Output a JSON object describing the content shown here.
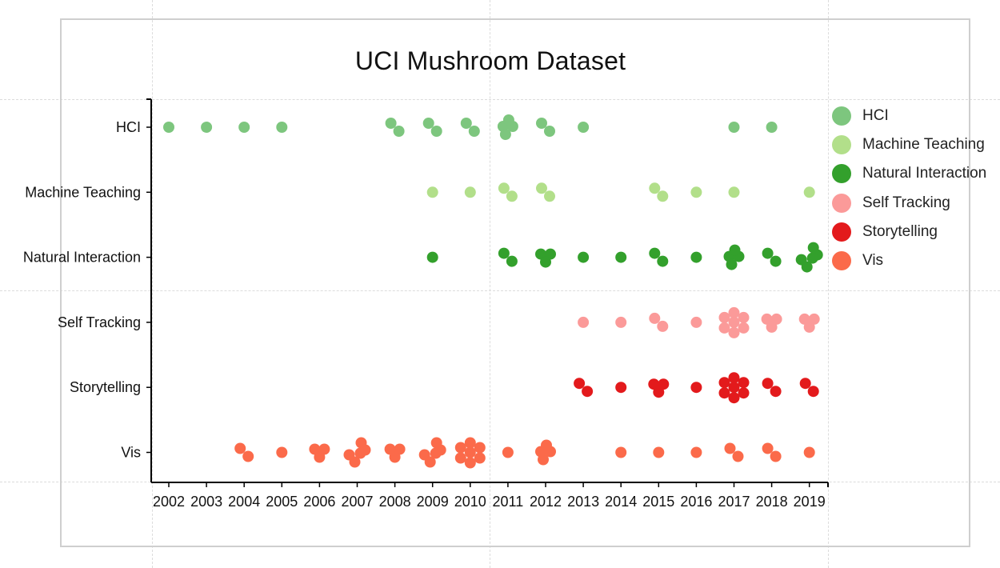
{
  "chart_data": {
    "type": "scatter",
    "title": "UCI Mushroom Dataset",
    "xlabel": "",
    "ylabel": "",
    "x_ticks": [
      "2002",
      "2003",
      "2004",
      "2005",
      "2006",
      "2007",
      "2008",
      "2009",
      "2010",
      "2011",
      "2012",
      "2013",
      "2014",
      "2015",
      "2016",
      "2017",
      "2018",
      "2019"
    ],
    "categories": [
      "HCI",
      "Machine Teaching",
      "Natural Interaction",
      "Self Tracking",
      "Storytelling",
      "Vis"
    ],
    "legend_position": "right",
    "grid": false,
    "series": [
      {
        "name": "HCI",
        "color": "#7dc67e",
        "counts": [
          1,
          1,
          1,
          1,
          0,
          0,
          2,
          2,
          2,
          4,
          2,
          1,
          0,
          0,
          0,
          1,
          1,
          0
        ]
      },
      {
        "name": "Machine Teaching",
        "color": "#b2df8a",
        "counts": [
          0,
          0,
          0,
          0,
          0,
          0,
          0,
          1,
          1,
          2,
          2,
          0,
          0,
          2,
          1,
          1,
          0,
          1
        ]
      },
      {
        "name": "Natural Interaction",
        "color": "#33a02c",
        "counts": [
          0,
          0,
          0,
          0,
          0,
          0,
          0,
          1,
          0,
          2,
          3,
          1,
          1,
          2,
          1,
          4,
          2,
          5
        ]
      },
      {
        "name": "Self Tracking",
        "color": "#fb9a99",
        "counts": [
          0,
          0,
          0,
          0,
          0,
          0,
          0,
          0,
          0,
          0,
          0,
          1,
          1,
          2,
          1,
          7,
          3,
          3
        ]
      },
      {
        "name": "Storytelling",
        "color": "#e31a1c",
        "counts": [
          0,
          0,
          0,
          0,
          0,
          0,
          0,
          0,
          0,
          0,
          0,
          2,
          1,
          3,
          1,
          7,
          2,
          2
        ]
      },
      {
        "name": "Vis",
        "color": "#fb6a4a",
        "counts": [
          0,
          0,
          2,
          1,
          3,
          5,
          3,
          5,
          7,
          1,
          4,
          0,
          1,
          1,
          1,
          2,
          2,
          1
        ]
      }
    ]
  }
}
